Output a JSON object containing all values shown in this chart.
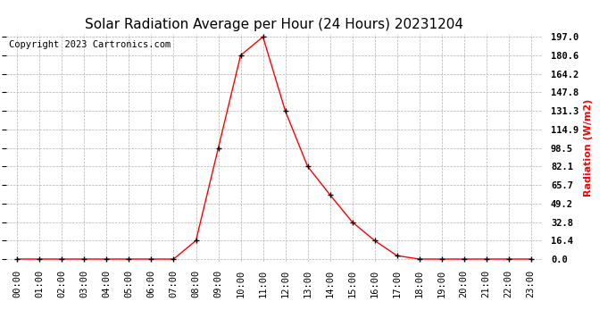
{
  "title": "Solar Radiation Average per Hour (24 Hours) 20231204",
  "copyright_text": "Copyright 2023 Cartronics.com",
  "ylabel": "Radiation (W/m2)",
  "hours": [
    0,
    1,
    2,
    3,
    4,
    5,
    6,
    7,
    8,
    9,
    10,
    11,
    12,
    13,
    14,
    15,
    16,
    17,
    18,
    19,
    20,
    21,
    22,
    23
  ],
  "values": [
    0.0,
    0.0,
    0.0,
    0.0,
    0.0,
    0.0,
    0.0,
    0.0,
    16.4,
    98.5,
    180.6,
    197.0,
    131.3,
    82.1,
    57.0,
    32.8,
    16.4,
    3.0,
    0.0,
    0.0,
    0.0,
    0.0,
    0.0,
    0.0
  ],
  "yticks": [
    0.0,
    16.4,
    32.8,
    49.2,
    65.7,
    82.1,
    98.5,
    114.9,
    131.3,
    147.8,
    164.2,
    180.6,
    197.0
  ],
  "ymax": 197.0,
  "line_color": "red",
  "marker_color": "black",
  "title_color": "black",
  "ylabel_color": "red",
  "copyright_color": "black",
  "bg_color": "white",
  "grid_color": "#aaaaaa",
  "title_fontsize": 11,
  "label_fontsize": 8,
  "tick_fontsize": 7.5,
  "copyright_fontsize": 7.5
}
